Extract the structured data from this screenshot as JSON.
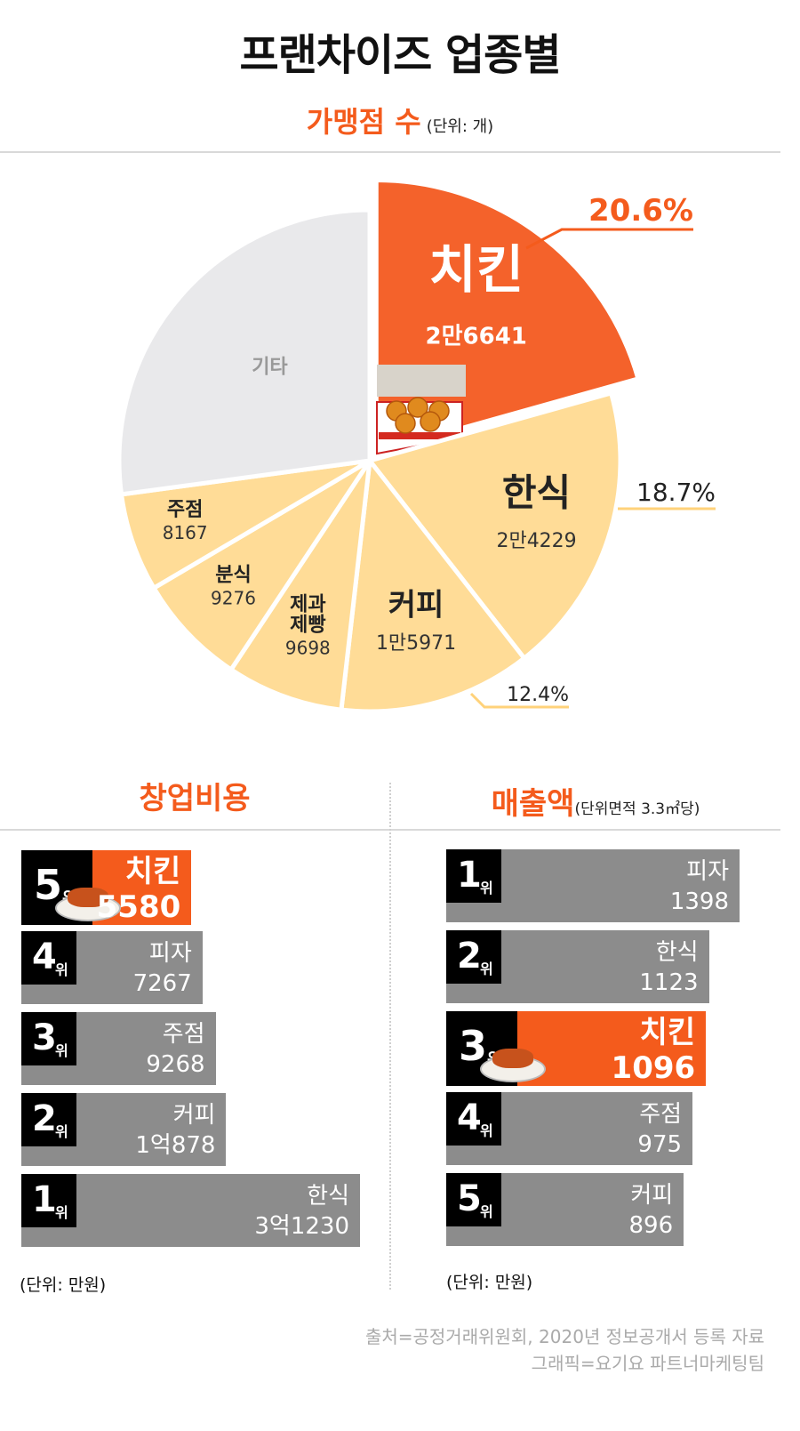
{
  "title": "프랜차이즈 업종별",
  "subtitle": "가맹점 수",
  "subtitle_unit": "(단위: 개)",
  "chart_data": [
    {
      "type": "pie",
      "title": "가맹점 수",
      "unit": "(단위: 개)",
      "slices": [
        {
          "name": "치킨",
          "value": 26641,
          "value_label": "2만6641",
          "percent_label": "20.6%",
          "color": "#f4622b"
        },
        {
          "name": "한식",
          "value": 24229,
          "value_label": "2만4229",
          "percent_label": "18.7%",
          "color": "#ffdc97"
        },
        {
          "name": "커피",
          "value": 15971,
          "value_label": "1만5971",
          "percent_label": "12.4%",
          "color": "#ffdc97"
        },
        {
          "name": "제과제빵",
          "name_lines": [
            "제과",
            "제빵"
          ],
          "value": 9698,
          "value_label": "9698",
          "percent_label": "",
          "color": "#ffdc97"
        },
        {
          "name": "분식",
          "value": 9276,
          "value_label": "9276",
          "percent_label": "",
          "color": "#ffdc97"
        },
        {
          "name": "주점",
          "value": 8167,
          "value_label": "8167",
          "percent_label": "",
          "color": "#ffdc97"
        },
        {
          "name": "기타",
          "value": 35018,
          "value_label": "",
          "percent_label": "",
          "color": "#e9e9eb"
        }
      ]
    },
    {
      "type": "bar",
      "title": "창업비용",
      "unit": "(단위: 만원)",
      "bars": [
        {
          "rank": "5",
          "name": "치킨",
          "value": 5580,
          "value_label": "5580",
          "highlight": true
        },
        {
          "rank": "4",
          "name": "피자",
          "value": 7267,
          "value_label": "7267",
          "highlight": false
        },
        {
          "rank": "3",
          "name": "주점",
          "value": 9268,
          "value_label": "9268",
          "highlight": false
        },
        {
          "rank": "2",
          "name": "커피",
          "value": 10878,
          "value_label": "1억878",
          "highlight": false
        },
        {
          "rank": "1",
          "name": "한식",
          "value": 31230,
          "value_label": "3억1230",
          "highlight": false
        }
      ]
    },
    {
      "type": "bar",
      "title": "매출액",
      "title_note": "(단위면적 3.3㎡당)",
      "unit": "(단위: 만원)",
      "bars": [
        {
          "rank": "1",
          "name": "피자",
          "value": 1398,
          "value_label": "1398",
          "highlight": false
        },
        {
          "rank": "2",
          "name": "한식",
          "value": 1123,
          "value_label": "1123",
          "highlight": false
        },
        {
          "rank": "3",
          "name": "치킨",
          "value": 1096,
          "value_label": "1096",
          "highlight": true
        },
        {
          "rank": "4",
          "name": "주점",
          "value": 975,
          "value_label": "975",
          "highlight": false
        },
        {
          "rank": "5",
          "name": "커피",
          "value": 896,
          "value_label": "896",
          "highlight": false
        }
      ]
    }
  ],
  "rank_suffix": "위",
  "source_line1": "출처=공정거래위원회, 2020년 정보공개서 등록 자료",
  "source_line2": "그래픽=요기요 파트너마케팅팀",
  "colors": {
    "accent": "#f45b1c",
    "bar": "#8c8c8c",
    "pie_light": "#ffdc97",
    "pie_other": "#e9e9eb"
  }
}
